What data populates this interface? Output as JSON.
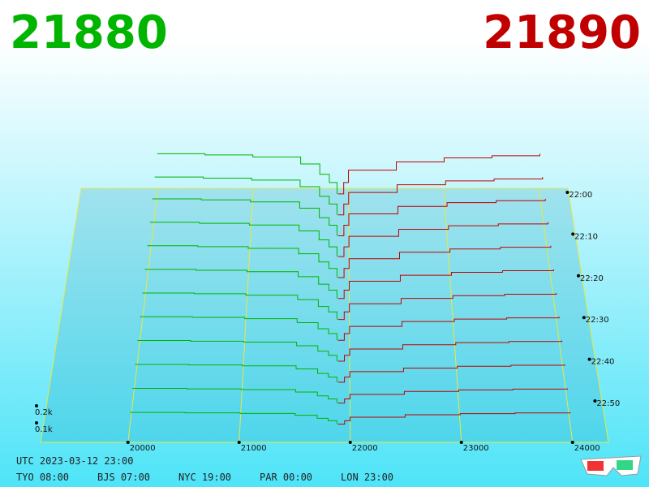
{
  "chart_data": {
    "type": "depth3d",
    "bid": 21880,
    "ask": 21890,
    "bid_color": "#00b400",
    "ask_color": "#c00000",
    "bid_prices": [
      20000,
      20500,
      21000,
      21500,
      21700,
      21800,
      21880
    ],
    "ask_prices": [
      21890,
      21950,
      22000,
      22500,
      23000,
      23500,
      24000
    ],
    "rows": [
      {
        "bids": [
          0.28,
          0.272,
          0.258,
          0.21,
          0.14,
          0.084,
          0.006
        ],
        "asks": [
          0.006,
          0.084,
          0.168,
          0.224,
          0.252,
          0.266,
          0.28
        ]
      },
      {
        "bids": [
          0.26,
          0.252,
          0.239,
          0.195,
          0.13,
          0.078,
          0.005
        ],
        "asks": [
          0.005,
          0.078,
          0.156,
          0.208,
          0.234,
          0.247,
          0.26
        ]
      },
      {
        "bids": [
          0.25,
          0.243,
          0.23,
          0.188,
          0.125,
          0.075,
          0.005
        ],
        "asks": [
          0.005,
          0.075,
          0.15,
          0.2,
          0.225,
          0.238,
          0.25
        ]
      },
      {
        "bids": [
          0.23,
          0.223,
          0.212,
          0.173,
          0.115,
          0.069,
          0.005
        ],
        "asks": [
          0.005,
          0.069,
          0.138,
          0.184,
          0.207,
          0.219,
          0.23
        ]
      },
      {
        "bids": [
          0.21,
          0.204,
          0.193,
          0.158,
          0.105,
          0.063,
          0.004
        ],
        "asks": [
          0.004,
          0.063,
          0.126,
          0.168,
          0.189,
          0.2,
          0.21
        ]
      },
      {
        "bids": [
          0.19,
          0.184,
          0.175,
          0.143,
          0.095,
          0.057,
          0.004
        ],
        "asks": [
          0.004,
          0.057,
          0.114,
          0.152,
          0.171,
          0.181,
          0.19
        ]
      },
      {
        "bids": [
          0.17,
          0.165,
          0.156,
          0.128,
          0.085,
          0.051,
          0.003
        ],
        "asks": [
          0.003,
          0.051,
          0.102,
          0.136,
          0.153,
          0.162,
          0.17
        ]
      },
      {
        "bids": [
          0.15,
          0.146,
          0.138,
          0.113,
          0.075,
          0.045,
          0.003
        ],
        "asks": [
          0.003,
          0.045,
          0.09,
          0.12,
          0.135,
          0.143,
          0.15
        ]
      },
      {
        "bids": [
          0.13,
          0.126,
          0.12,
          0.098,
          0.065,
          0.039,
          0.003
        ],
        "asks": [
          0.003,
          0.039,
          0.078,
          0.104,
          0.117,
          0.124,
          0.13
        ]
      },
      {
        "bids": [
          0.11,
          0.107,
          0.101,
          0.083,
          0.055,
          0.033,
          0.002
        ],
        "asks": [
          0.002,
          0.033,
          0.066,
          0.088,
          0.099,
          0.105,
          0.11
        ]
      },
      {
        "bids": [
          0.09,
          0.087,
          0.083,
          0.068,
          0.045,
          0.027,
          0.002
        ],
        "asks": [
          0.002,
          0.027,
          0.054,
          0.072,
          0.081,
          0.086,
          0.09
        ]
      },
      {
        "bids": [
          0.07,
          0.068,
          0.064,
          0.053,
          0.035,
          0.021,
          0.001
        ],
        "asks": [
          0.001,
          0.021,
          0.042,
          0.056,
          0.063,
          0.067,
          0.07
        ]
      }
    ],
    "xticks": [
      20000,
      21000,
      22000,
      23000,
      24000
    ],
    "yticks": [
      {
        "value": 0.1,
        "label": "0.1k"
      },
      {
        "value": 0.2,
        "label": "0.2k"
      }
    ],
    "time_ticks": [
      "22:00",
      "22:10",
      "22:20",
      "22:30",
      "22:40",
      "22:50"
    ],
    "utc": "UTC 2023-03-12 23:00",
    "clocks": [
      "TYO 08:00",
      "BJS 07:00",
      "NYC 19:00",
      "PAR 00:00",
      "LON 23:00"
    ]
  }
}
